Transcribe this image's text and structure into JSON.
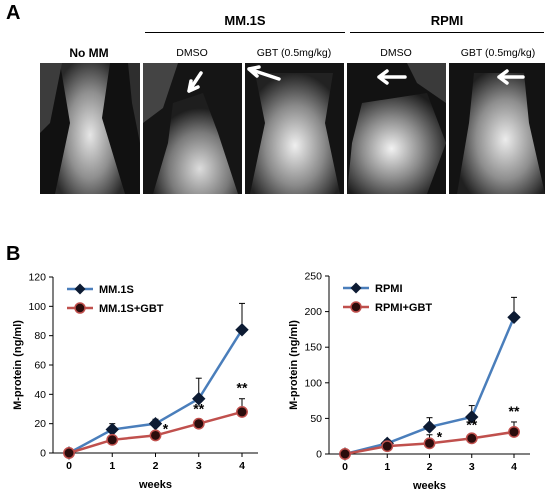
{
  "figure": {
    "panel_a": "A",
    "panel_b": "B",
    "groups": [
      "MM.1S",
      "RPMI"
    ],
    "images": [
      {
        "label": "No MM",
        "arrow": "none"
      },
      {
        "label": "DMSO",
        "arrow": "down-left"
      },
      {
        "label": "GBT (0.5mg/kg)",
        "arrow": "left-up"
      },
      {
        "label": "DMSO",
        "arrow": "left"
      },
      {
        "label": "GBT (0.5mg/kg)",
        "arrow": "left"
      }
    ]
  },
  "chart_data": [
    {
      "type": "line",
      "x": [
        0,
        1,
        2,
        3,
        4
      ],
      "xlabel": "weeks",
      "ylabel": "M-protein (ng/ml)",
      "ylim": [
        0,
        120
      ],
      "yticks": [
        0,
        20,
        40,
        60,
        80,
        100,
        120
      ],
      "legend": "top-left",
      "grid": false,
      "series": [
        {
          "name": "MM.1S",
          "marker": "diamond",
          "color": "#4a7ebb",
          "values": [
            0,
            16,
            20,
            37,
            84
          ],
          "err": [
            0,
            4,
            3,
            14,
            18
          ]
        },
        {
          "name": "MM.1S+GBT",
          "marker": "circle",
          "color": "#c0504d",
          "values": [
            0,
            9,
            12,
            20,
            28
          ],
          "err": [
            0,
            3,
            2,
            3,
            9
          ]
        }
      ],
      "annotations": [
        {
          "x": 2,
          "text": "*"
        },
        {
          "x": 3,
          "text": "**"
        },
        {
          "x": 4,
          "text": "**"
        }
      ]
    },
    {
      "type": "line",
      "x": [
        0,
        1,
        2,
        3,
        4
      ],
      "xlabel": "weeks",
      "ylabel": "M-protein (ng/ml)",
      "ylim": [
        0,
        250
      ],
      "yticks": [
        0,
        50,
        100,
        150,
        200,
        250
      ],
      "legend": "top-left",
      "grid": false,
      "series": [
        {
          "name": "RPMI",
          "marker": "diamond",
          "color": "#4a7ebb",
          "values": [
            0,
            15,
            38,
            52,
            192
          ],
          "err": [
            0,
            5,
            13,
            16,
            28
          ]
        },
        {
          "name": "RPMI+GBT",
          "marker": "circle",
          "color": "#c0504d",
          "values": [
            0,
            11,
            15,
            22,
            31
          ],
          "err": [
            0,
            4,
            12,
            4,
            14
          ]
        }
      ],
      "annotations": [
        {
          "x": 2,
          "text": "*"
        },
        {
          "x": 3,
          "text": "**"
        },
        {
          "x": 4,
          "text": "**"
        }
      ]
    }
  ]
}
